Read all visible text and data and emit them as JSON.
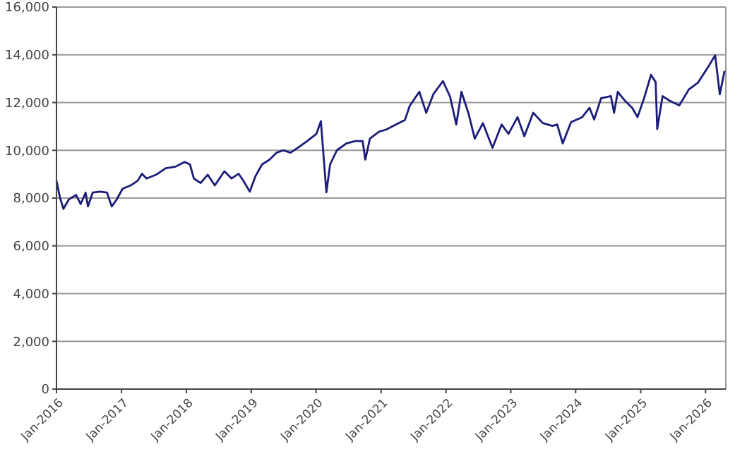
{
  "chart_data": {
    "type": "line",
    "grid": "y",
    "xlim": [
      "2016-01-01",
      "2026-04-25"
    ],
    "ylim": [
      0,
      16000
    ],
    "yticks": [
      {
        "value": 0,
        "label": "0"
      },
      {
        "value": 2000,
        "label": "2,000"
      },
      {
        "value": 4000,
        "label": "4,000"
      },
      {
        "value": 6000,
        "label": "6,000"
      },
      {
        "value": 8000,
        "label": "8,000"
      },
      {
        "value": 10000,
        "label": "10,000"
      },
      {
        "value": 12000,
        "label": "12,000"
      },
      {
        "value": 14000,
        "label": "14,000"
      },
      {
        "value": 16000,
        "label": "16,000"
      }
    ],
    "xticks": [
      {
        "value": "2016-01-01",
        "label": "Jan-2016"
      },
      {
        "value": "2017-01-01",
        "label": "Jan-2017"
      },
      {
        "value": "2018-01-01",
        "label": "Jan-2018"
      },
      {
        "value": "2019-01-01",
        "label": "Jan-2019"
      },
      {
        "value": "2020-01-01",
        "label": "Jan-2020"
      },
      {
        "value": "2021-01-01",
        "label": "Jan-2021"
      },
      {
        "value": "2022-01-01",
        "label": "Jan-2022"
      },
      {
        "value": "2023-01-01",
        "label": "Jan-2023"
      },
      {
        "value": "2024-01-01",
        "label": "Jan-2024"
      },
      {
        "value": "2025-01-01",
        "label": "Jan-2025"
      },
      {
        "value": "2026-01-01",
        "label": "Jan-2026"
      }
    ],
    "marker": "none",
    "line_style": "solid",
    "series": [
      {
        "color": "#1c1c7a",
        "x": [
          "2016-01-01",
          "2016-01-20",
          "2016-02-09",
          "2016-03-11",
          "2016-04-20",
          "2016-05-16",
          "2016-06-13",
          "2016-06-26",
          "2016-07-23",
          "2016-09-01",
          "2016-10-11",
          "2016-11-07",
          "2016-12-05",
          "2017-01-07",
          "2017-02-21",
          "2017-04-02",
          "2017-04-26",
          "2017-05-22",
          "2017-07-15",
          "2017-09-07",
          "2017-10-30",
          "2017-12-22",
          "2018-01-21",
          "2018-02-12",
          "2018-03-22",
          "2018-05-01",
          "2018-06-10",
          "2018-08-03",
          "2018-09-13",
          "2018-10-22",
          "2018-11-18",
          "2018-12-24",
          "2019-01-25",
          "2019-03-03",
          "2019-04-14",
          "2019-05-23",
          "2019-07-01",
          "2019-08-10",
          "2019-09-19",
          "2019-11-12",
          "2020-01-03",
          "2020-01-28",
          "2020-02-28",
          "2020-03-20",
          "2020-04-27",
          "2020-06-20",
          "2020-08-10",
          "2020-09-19",
          "2020-10-04",
          "2020-10-30",
          "2020-12-20",
          "2021-01-30",
          "2021-03-25",
          "2021-05-15",
          "2021-06-11",
          "2021-08-04",
          "2021-09-12",
          "2021-10-22",
          "2021-12-15",
          "2022-01-24",
          "2022-02-28",
          "2022-03-29",
          "2022-05-07",
          "2022-06-12",
          "2022-07-28",
          "2022-09-20",
          "2022-11-10",
          "2022-12-19",
          "2023-02-08",
          "2023-03-18",
          "2023-05-07",
          "2023-06-30",
          "2023-08-23",
          "2023-09-19",
          "2023-10-20",
          "2023-12-06",
          "2024-02-07",
          "2024-03-19",
          "2024-04-14",
          "2024-05-23",
          "2024-07-17",
          "2024-08-04",
          "2024-08-25",
          "2024-10-04",
          "2024-11-14",
          "2024-12-14",
          "2025-01-20",
          "2025-02-28",
          "2025-03-26",
          "2025-04-04",
          "2025-05-04",
          "2025-06-12",
          "2025-08-06",
          "2025-09-29",
          "2025-11-20",
          "2026-01-12",
          "2026-02-24",
          "2026-03-22",
          "2026-04-18"
        ],
        "values": [
          8725,
          8040,
          7550,
          7950,
          8130,
          7750,
          8230,
          7650,
          8230,
          8270,
          8230,
          7650,
          7940,
          8390,
          8530,
          8725,
          9020,
          8820,
          8980,
          9250,
          9310,
          9510,
          9410,
          8820,
          8630,
          8980,
          8530,
          9120,
          8820,
          9020,
          8725,
          8270,
          8920,
          9410,
          9610,
          9900,
          10000,
          9900,
          10100,
          10390,
          10690,
          11220,
          8240,
          9410,
          10000,
          10290,
          10390,
          10390,
          9610,
          10490,
          10780,
          10870,
          11080,
          11270,
          11860,
          12450,
          11570,
          12350,
          12900,
          12250,
          11080,
          12450,
          11570,
          10490,
          11140,
          10100,
          11080,
          10690,
          11390,
          10590,
          11570,
          11140,
          11020,
          11080,
          10290,
          11180,
          11390,
          11780,
          11290,
          12180,
          12270,
          11570,
          12450,
          12080,
          11780,
          11390,
          12180,
          13160,
          12860,
          10890,
          12270,
          12080,
          11880,
          12550,
          12840,
          13450,
          13980,
          12350,
          13330
        ]
      }
    ]
  }
}
